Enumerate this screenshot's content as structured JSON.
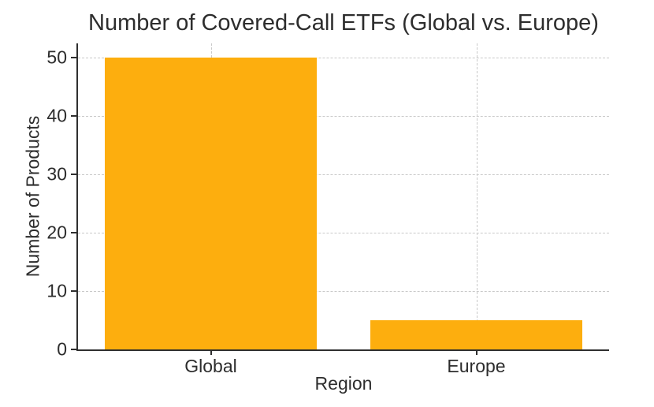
{
  "chart_data": {
    "type": "bar",
    "title": "Number of Covered-Call ETFs (Global vs. Europe)",
    "xlabel": "Region",
    "ylabel": "Number of Products",
    "categories": [
      "Global",
      "Europe"
    ],
    "values": [
      50,
      5
    ],
    "yticks": [
      0,
      10,
      20,
      30,
      40,
      50
    ],
    "ylim": [
      0,
      52.5
    ],
    "grid": true,
    "legend": "none",
    "bar_width_fraction": 0.8,
    "bar_color": "#FDAE0E",
    "grid_color": "#c9c9c9",
    "axis_color": "#2f2f2f",
    "text_color": "#2d2d2d"
  }
}
